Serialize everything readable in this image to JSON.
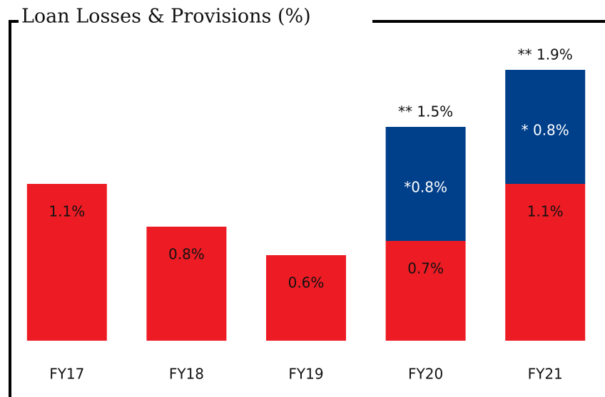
{
  "chart_data": {
    "type": "bar",
    "stacked": true,
    "title": "Loan Losses & Provisions (%)",
    "categories": [
      "FY17",
      "FY18",
      "FY19",
      "FY20",
      "FY21"
    ],
    "series": [
      {
        "color": "#ed1c24",
        "label_color": "#111111",
        "values": [
          1.1,
          0.8,
          0.6,
          0.7,
          1.1
        ],
        "value_labels": [
          "1.1%",
          "0.8%",
          "0.6%",
          "0.7%",
          "1.1%"
        ]
      },
      {
        "color": "#003f8a",
        "label_color": "#ffffff",
        "values": [
          null,
          null,
          null,
          0.8,
          0.8
        ],
        "value_labels": [
          null,
          null,
          null,
          "*0.8%",
          "* 0.8%"
        ]
      }
    ],
    "total_labels": [
      null,
      null,
      null,
      "** 1.5%",
      "** 1.9%"
    ],
    "ylim": [
      0,
      2.0
    ]
  }
}
